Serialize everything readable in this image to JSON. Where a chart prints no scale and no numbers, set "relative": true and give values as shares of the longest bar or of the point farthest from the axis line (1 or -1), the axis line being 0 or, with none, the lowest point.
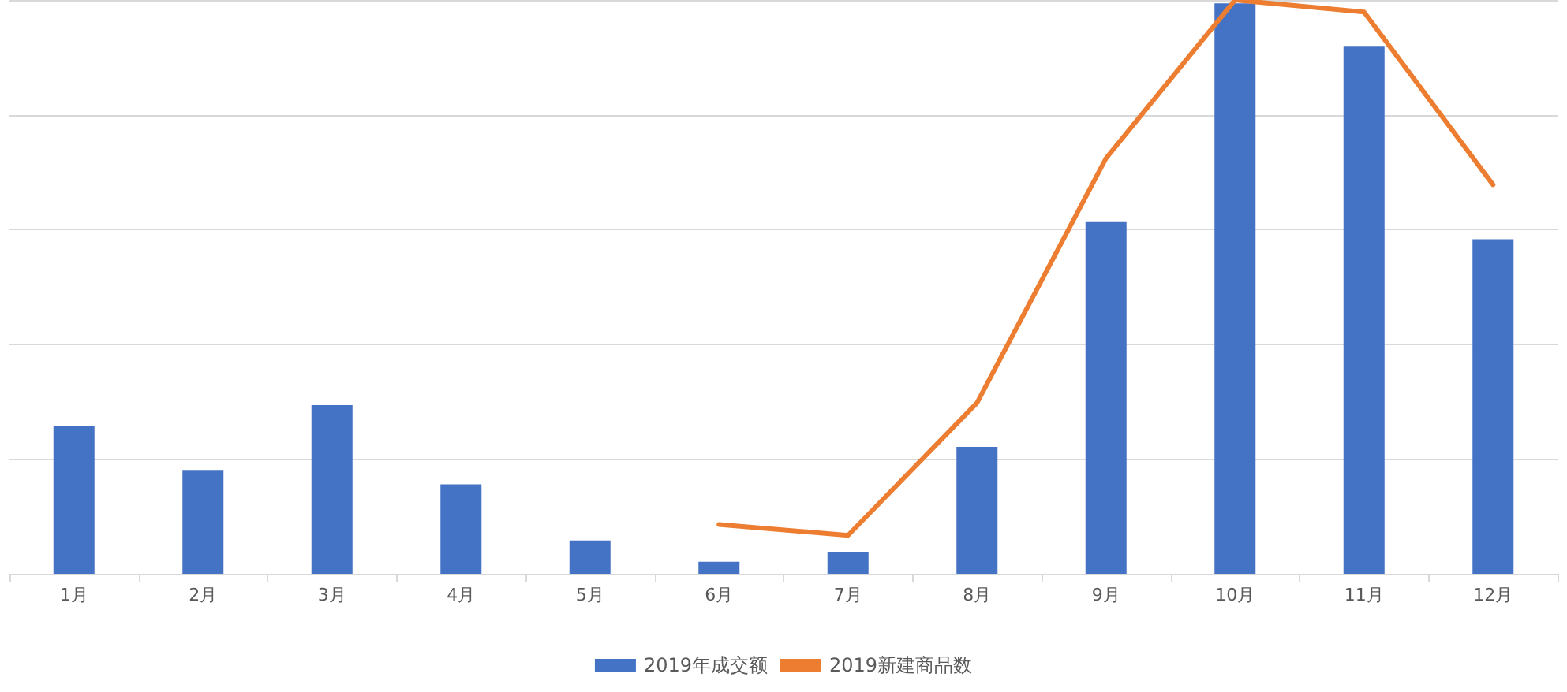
{
  "chart_data": {
    "type": "bar",
    "relative": true,
    "categories": [
      "1月",
      "2月",
      "3月",
      "4月",
      "5月",
      "6月",
      "7月",
      "8月",
      "9月",
      "10月",
      "11月",
      "12月"
    ],
    "series": [
      {
        "name": "2019年成交额",
        "color": "#4472c4",
        "values": [
          0.258,
          0.181,
          0.294,
          0.156,
          0.058,
          0.021,
          0.037,
          0.221,
          0.613,
          0.994,
          0.92,
          0.583
        ]
      },
      {
        "name": "2019新建商品数",
        "type": "line",
        "color": "#ed7d31",
        "values": [
          null,
          null,
          null,
          null,
          null,
          0.086,
          0.067,
          0.298,
          0.724,
          1,
          0.979,
          0.678
        ]
      }
    ],
    "grid": "y",
    "legend": "bottom",
    "marker": "none",
    "line_style": "solid"
  }
}
